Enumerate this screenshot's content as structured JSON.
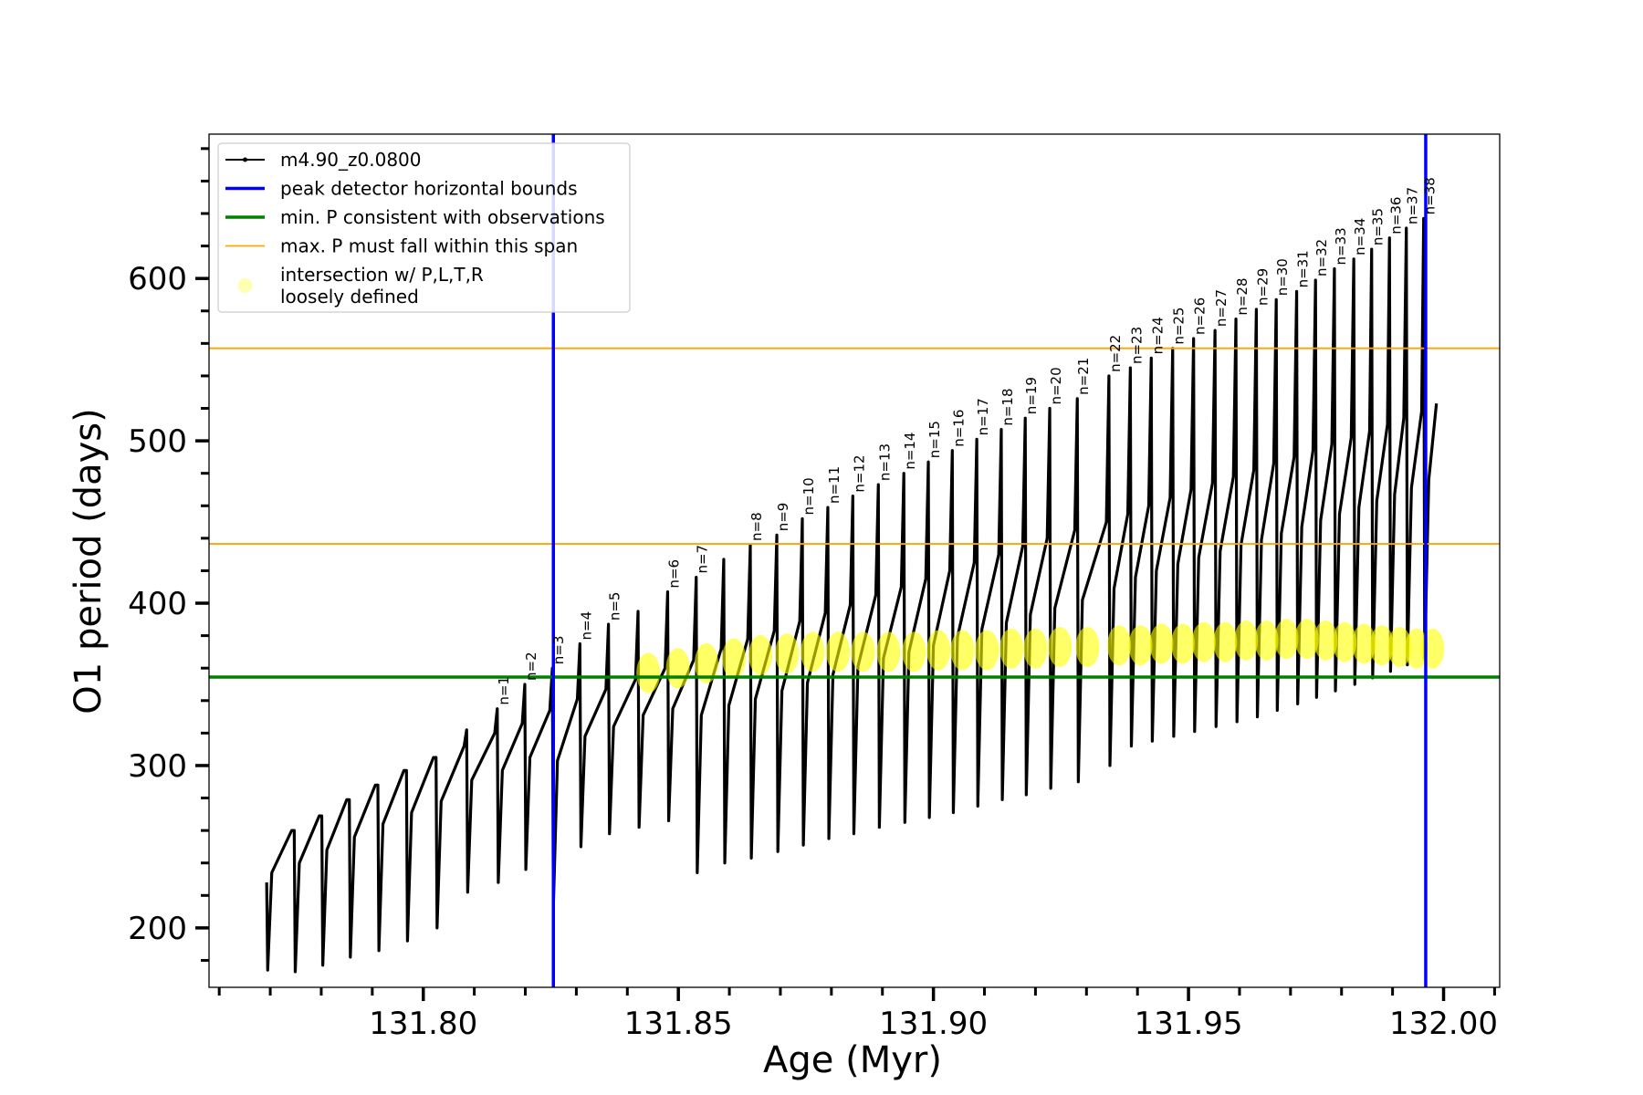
{
  "chart_data": {
    "type": "line",
    "xlabel": "Age (Myr)",
    "ylabel": "O1 period (days)",
    "xlim": [
      131.758,
      132.011
    ],
    "ylim": [
      163.4,
      688.9
    ],
    "xticks": [
      {
        "value": 131.8,
        "label": "131.80"
      },
      131.85,
      {
        "value": 131.9,
        "label": "131.90"
      },
      131.95,
      {
        "value": 132,
        "label": "132.00"
      }
    ],
    "yticks": [
      200,
      300,
      400,
      500,
      600
    ],
    "xticks_minor": [
      131.76,
      131.77,
      131.78,
      131.79,
      131.81,
      131.82,
      131.83,
      131.84,
      131.86,
      131.87,
      131.88,
      131.89,
      131.91,
      131.92,
      131.93,
      131.94,
      131.96,
      131.97,
      131.98,
      131.99,
      132.01
    ],
    "yticks_minor": [
      180,
      220,
      240,
      260,
      280,
      320,
      340,
      360,
      380,
      420,
      440,
      460,
      480,
      520,
      540,
      560,
      580,
      620,
      640,
      660,
      680
    ],
    "legend": "upper left",
    "series": [
      {
        "name": "m4.90_z0.0800",
        "type": "line",
        "color": "#000000",
        "x": [
          131.7693,
          131.7695,
          131.7703,
          131.7742,
          131.7747,
          131.7749,
          131.7757,
          131.7796,
          131.7801,
          131.7803,
          131.7811,
          131.785,
          131.7855,
          131.7857,
          131.7865,
          131.7906,
          131.7911,
          131.7913,
          131.7921,
          131.7962,
          131.7967,
          131.7969,
          131.7977,
          131.802,
          131.8025,
          131.8027,
          131.8035,
          131.808,
          131.8085,
          131.8087,
          131.8095,
          131.814,
          131.8145,
          131.8147,
          131.8155,
          131.8194,
          131.8199,
          131.8201,
          131.8209,
          131.8248,
          131.8253,
          131.8255,
          131.8263,
          131.8302,
          131.8307,
          131.8309,
          131.8317,
          131.8358,
          131.8363,
          131.8365,
          131.8373,
          131.8416,
          131.8421,
          131.8423,
          131.8431,
          131.8474,
          131.8479,
          131.8481,
          131.8489,
          131.853,
          131.8535,
          131.8537,
          131.8545,
          131.8584,
          131.8589,
          131.8591,
          131.8599,
          131.8636,
          131.8641,
          131.8643,
          131.8651,
          131.8688,
          131.8693,
          131.8695,
          131.8703,
          131.8738,
          131.8743,
          131.8745,
          131.8753,
          131.8788,
          131.8793,
          131.8795,
          131.8803,
          131.8837,
          131.8842,
          131.8844,
          131.8852,
          131.8887,
          131.8892,
          131.8894,
          131.8902,
          131.8937,
          131.8942,
          131.8944,
          131.8952,
          131.8985,
          131.899,
          131.8992,
          131.9,
          131.9032,
          131.9037,
          131.9039,
          131.9047,
          131.908,
          131.9085,
          131.9087,
          131.9095,
          131.9128,
          131.9133,
          131.9135,
          131.9143,
          131.9175,
          131.918,
          131.9182,
          131.919,
          131.9223,
          131.9228,
          131.923,
          131.9238,
          131.9277,
          131.9282,
          131.9284,
          131.9292,
          131.9339,
          131.9344,
          131.9346,
          131.9354,
          131.9381,
          131.9386,
          131.9388,
          131.9396,
          131.9422,
          131.9427,
          131.9429,
          131.9437,
          131.9464,
          131.9469,
          131.9471,
          131.9479,
          131.9505,
          131.951,
          131.9512,
          131.952,
          131.9547,
          131.9552,
          131.9554,
          131.9562,
          131.9588,
          131.9593,
          131.9595,
          131.9603,
          131.9628,
          131.9633,
          131.9635,
          131.9643,
          131.9667,
          131.9672,
          131.9674,
          131.9682,
          131.9707,
          131.9712,
          131.9714,
          131.9722,
          131.9744,
          131.9749,
          131.9751,
          131.9759,
          131.9781,
          131.9786,
          131.9788,
          131.9796,
          131.9819,
          131.9824,
          131.9826,
          131.9834,
          131.9855,
          131.9859,
          131.9861,
          131.9869,
          131.989,
          131.9894,
          131.9896,
          131.9904,
          131.9922,
          131.9927,
          131.9929,
          131.9937,
          131.9957,
          131.9961,
          131.9963,
          131.9971,
          131.9986
        ],
        "values": [
          228,
          174,
          234,
          260,
          260,
          173,
          240,
          269,
          269,
          177,
          248,
          279,
          279,
          182,
          256,
          288,
          288,
          186,
          264,
          297,
          297,
          192,
          271,
          305,
          305,
          200,
          278,
          312,
          322,
          222,
          291,
          320,
          335,
          228,
          297,
          326,
          350,
          236,
          305,
          334,
          360,
          213,
          303,
          341,
          375,
          250,
          318,
          347,
          387,
          258,
          324,
          353,
          395,
          262,
          331,
          360,
          407,
          266,
          335,
          365,
          416,
          234,
          331,
          372,
          427,
          240,
          337,
          378,
          436,
          243,
          341,
          383,
          442,
          247,
          346,
          389,
          452,
          251,
          351,
          394,
          459,
          255,
          356,
          399,
          466,
          258,
          361,
          405,
          473,
          262,
          366,
          410,
          480,
          265,
          370,
          415,
          487,
          268,
          374,
          420,
          494,
          271,
          379,
          425,
          501,
          275,
          384,
          430,
          507,
          279,
          388,
          435,
          514,
          282,
          393,
          440,
          520,
          286,
          397,
          445,
          526,
          290,
          402,
          450,
          540,
          300,
          409,
          455,
          545,
          312,
          416,
          460,
          551,
          315,
          420,
          465,
          557,
          318,
          424,
          470,
          563,
          321,
          428,
          474,
          568,
          324,
          432,
          478,
          575,
          327,
          436,
          482,
          581,
          330,
          439,
          486,
          587,
          334,
          443,
          490,
          592,
          338,
          447,
          494,
          599,
          342,
          451,
          498,
          606,
          346,
          455,
          502,
          612,
          350,
          459,
          506,
          618,
          354,
          463,
          510,
          625,
          358,
          467,
          514,
          631,
          362,
          471,
          518,
          637,
          366,
          476,
          523
        ]
      },
      {
        "name": "intersection w/ P,L,T,R\nloosely defined",
        "type": "scatter",
        "color": "#ffff00",
        "x": [
          131.8441,
          131.8499,
          131.8555,
          131.8609,
          131.8661,
          131.8713,
          131.8763,
          131.8813,
          131.8862,
          131.8912,
          131.8962,
          131.901,
          131.9057,
          131.9105,
          131.9153,
          131.92,
          131.9248,
          131.9302,
          131.9364,
          131.9406,
          131.9447,
          131.9489,
          131.953,
          131.9572,
          131.9613,
          131.9653,
          131.9692,
          131.9732,
          131.9769,
          131.9806,
          131.9844,
          131.9879,
          131.9914,
          131.9947,
          131.9978
        ],
        "values": [
          357,
          360,
          363,
          366,
          368,
          369,
          370,
          370,
          370,
          370,
          370,
          371,
          371,
          371,
          372,
          372,
          373,
          373,
          374,
          374,
          375,
          375,
          376,
          376,
          377,
          377,
          378,
          378,
          377,
          376,
          375,
          374,
          373,
          372,
          372
        ]
      }
    ],
    "vlines": [
      {
        "name": "peak detector horizontal bounds",
        "color": "#0000ff",
        "x": [
          131.8255,
          131.9965
        ]
      }
    ],
    "hlines": [
      {
        "name": "min. P consistent with observations",
        "color": "#008000",
        "y": [
          354.5
        ]
      },
      {
        "name": "max. P must fall within this span",
        "color": "#ffa500",
        "y": [
          436.5,
          557
        ]
      }
    ],
    "annotations": [
      {
        "text": "n=1",
        "x": 131.8145,
        "y": 335
      },
      {
        "text": "n=2",
        "x": 131.8199,
        "y": 350
      },
      {
        "text": "n=3",
        "x": 131.8253,
        "y": 360
      },
      {
        "text": "n=4",
        "x": 131.8307,
        "y": 375
      },
      {
        "text": "n=5",
        "x": 131.8363,
        "y": 387
      },
      {
        "text": "n=6",
        "x": 131.8479,
        "y": 407
      },
      {
        "text": "n=7",
        "x": 131.8535,
        "y": 416
      },
      {
        "text": "n=8",
        "x": 131.8641,
        "y": 436
      },
      {
        "text": "n=9",
        "x": 131.8693,
        "y": 442
      },
      {
        "text": "n=10",
        "x": 131.8743,
        "y": 452
      },
      {
        "text": "n=11",
        "x": 131.8793,
        "y": 459
      },
      {
        "text": "n=12",
        "x": 131.8842,
        "y": 466
      },
      {
        "text": "n=13",
        "x": 131.8892,
        "y": 473
      },
      {
        "text": "n=14",
        "x": 131.8942,
        "y": 480
      },
      {
        "text": "n=15",
        "x": 131.899,
        "y": 487
      },
      {
        "text": "n=16",
        "x": 131.9037,
        "y": 494
      },
      {
        "text": "n=17",
        "x": 131.9085,
        "y": 501
      },
      {
        "text": "n=18",
        "x": 131.9133,
        "y": 507
      },
      {
        "text": "n=19",
        "x": 131.918,
        "y": 514
      },
      {
        "text": "n=20",
        "x": 131.9228,
        "y": 520
      },
      {
        "text": "n=21",
        "x": 131.9282,
        "y": 526
      },
      {
        "text": "n=22",
        "x": 131.9344,
        "y": 540
      },
      {
        "text": "n=23",
        "x": 131.9386,
        "y": 545
      },
      {
        "text": "n=24",
        "x": 131.9427,
        "y": 551
      },
      {
        "text": "n=25",
        "x": 131.9469,
        "y": 557
      },
      {
        "text": "n=26",
        "x": 131.951,
        "y": 563
      },
      {
        "text": "n=27",
        "x": 131.9552,
        "y": 568
      },
      {
        "text": "n=28",
        "x": 131.9593,
        "y": 575
      },
      {
        "text": "n=29",
        "x": 131.9633,
        "y": 581
      },
      {
        "text": "n=30",
        "x": 131.9672,
        "y": 587
      },
      {
        "text": "n=31",
        "x": 131.9712,
        "y": 592
      },
      {
        "text": "n=32",
        "x": 131.9749,
        "y": 599
      },
      {
        "text": "n=33",
        "x": 131.9786,
        "y": 606
      },
      {
        "text": "n=34",
        "x": 131.9824,
        "y": 612
      },
      {
        "text": "n=35",
        "x": 131.9859,
        "y": 618
      },
      {
        "text": "n=36",
        "x": 131.9894,
        "y": 625
      },
      {
        "text": "n=37",
        "x": 131.9927,
        "y": 631
      },
      {
        "text": "n=38",
        "x": 131.9961,
        "y": 637
      }
    ]
  }
}
